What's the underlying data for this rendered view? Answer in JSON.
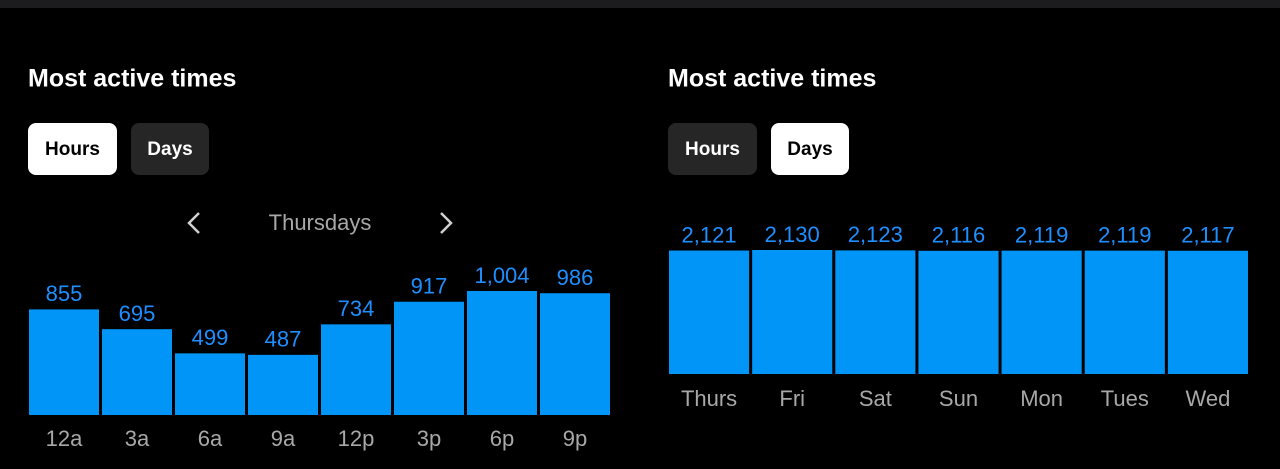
{
  "chart_data": [
    {
      "type": "bar",
      "title": "Most active times",
      "tabs": [
        "Hours",
        "Days"
      ],
      "active_tab": 0,
      "subtitle": "Thursdays",
      "color": "#0095f6",
      "categories": [
        "12a",
        "3a",
        "6a",
        "9a",
        "12p",
        "3p",
        "6p",
        "9p"
      ],
      "values": [
        855,
        695,
        499,
        487,
        734,
        917,
        1004,
        986
      ],
      "value_labels": [
        "855",
        "695",
        "499",
        "487",
        "734",
        "917",
        "1,004",
        "986"
      ]
    },
    {
      "type": "bar",
      "title": "Most active times",
      "tabs": [
        "Hours",
        "Days"
      ],
      "active_tab": 1,
      "color": "#0095f6",
      "categories": [
        "Thurs",
        "Fri",
        "Sat",
        "Sun",
        "Mon",
        "Tues",
        "Wed"
      ],
      "values": [
        2121,
        2130,
        2123,
        2116,
        2119,
        2119,
        2117
      ],
      "value_labels": [
        "2,121",
        "2,130",
        "2,123",
        "2,116",
        "2,119",
        "2,119",
        "2,117"
      ]
    }
  ]
}
